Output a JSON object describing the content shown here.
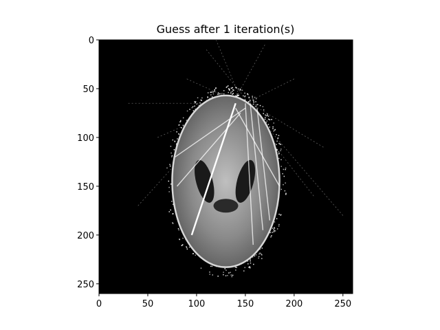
{
  "chart_data": {
    "type": "heatmap",
    "title": "Guess after 1 iteration(s)",
    "xlabel": "",
    "ylabel": "",
    "xlim": [
      0,
      260
    ],
    "ylim": [
      260,
      0
    ],
    "xticks": [
      0,
      50,
      100,
      150,
      200,
      250
    ],
    "yticks": [
      0,
      50,
      100,
      150,
      200,
      250
    ],
    "colormap": "gray",
    "background_color": "#000000",
    "image": {
      "shape": "head-phantom reconstruction with streak artifacts",
      "ellipse_center": [
        130,
        145
      ],
      "ellipse_semi_axes": [
        55,
        88
      ],
      "dark_regions_center_y": 145,
      "dark_left_center_x": 108,
      "dark_right_center_x": 150
    }
  }
}
